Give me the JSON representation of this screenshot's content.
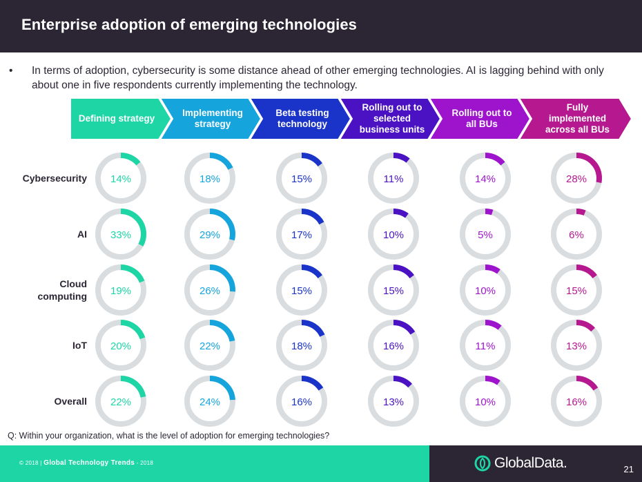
{
  "header": {
    "title": "Enterprise adoption of emerging technologies"
  },
  "bullet": {
    "marker": "•",
    "text": "In terms of adoption, cybersecurity is some distance ahead of other emerging technologies. AI is lagging behind with only about one in five respondents currently implementing  the technology."
  },
  "colors": {
    "header_bg": "#2b2534",
    "ring_track": "#d9dde0",
    "stage_colors": [
      "#1ed5a6",
      "#16a4dc",
      "#1a33c9",
      "#4a12c2",
      "#9e14cc",
      "#b5188f"
    ]
  },
  "chart_data": {
    "type": "donut-grid",
    "title": "Enterprise adoption of emerging technologies",
    "stages": [
      "Defining strategy",
      "Implementing strategy",
      "Beta testing technology",
      "Rolling out to selected business units",
      "Rolling out to all BUs",
      "Fully implemented across all BUs"
    ],
    "stage_lines": [
      [
        "Defining strategy"
      ],
      [
        "Implementing",
        "strategy"
      ],
      [
        "Beta testing",
        "technology"
      ],
      [
        "Rolling out to",
        "selected",
        "business units"
      ],
      [
        "Rolling out to",
        "all BUs"
      ],
      [
        "Fully",
        "implemented",
        "across all BUs"
      ]
    ],
    "technologies": [
      {
        "name": "Cybersecurity",
        "lines": [
          "Cybersecurity"
        ],
        "values": [
          14,
          18,
          15,
          11,
          14,
          28
        ]
      },
      {
        "name": "AI",
        "lines": [
          "AI"
        ],
        "values": [
          33,
          29,
          17,
          10,
          5,
          6
        ]
      },
      {
        "name": "Cloud computing",
        "lines": [
          "Cloud",
          "computing"
        ],
        "values": [
          19,
          26,
          15,
          15,
          10,
          15
        ]
      },
      {
        "name": "IoT",
        "lines": [
          "IoT"
        ],
        "values": [
          20,
          22,
          18,
          16,
          11,
          13
        ]
      },
      {
        "name": "Overall",
        "lines": [
          "Overall"
        ],
        "values": [
          22,
          24,
          16,
          13,
          10,
          16
        ]
      }
    ],
    "unit": "%"
  },
  "question": "Q: Within your organization, what is the level of adoption for emerging technologies?",
  "footer": {
    "copyright": "© 2018 | ",
    "report": "Global Technology Trends",
    "year": " - 2018",
    "logo_text": "GlobalData.",
    "page_number": "21"
  }
}
